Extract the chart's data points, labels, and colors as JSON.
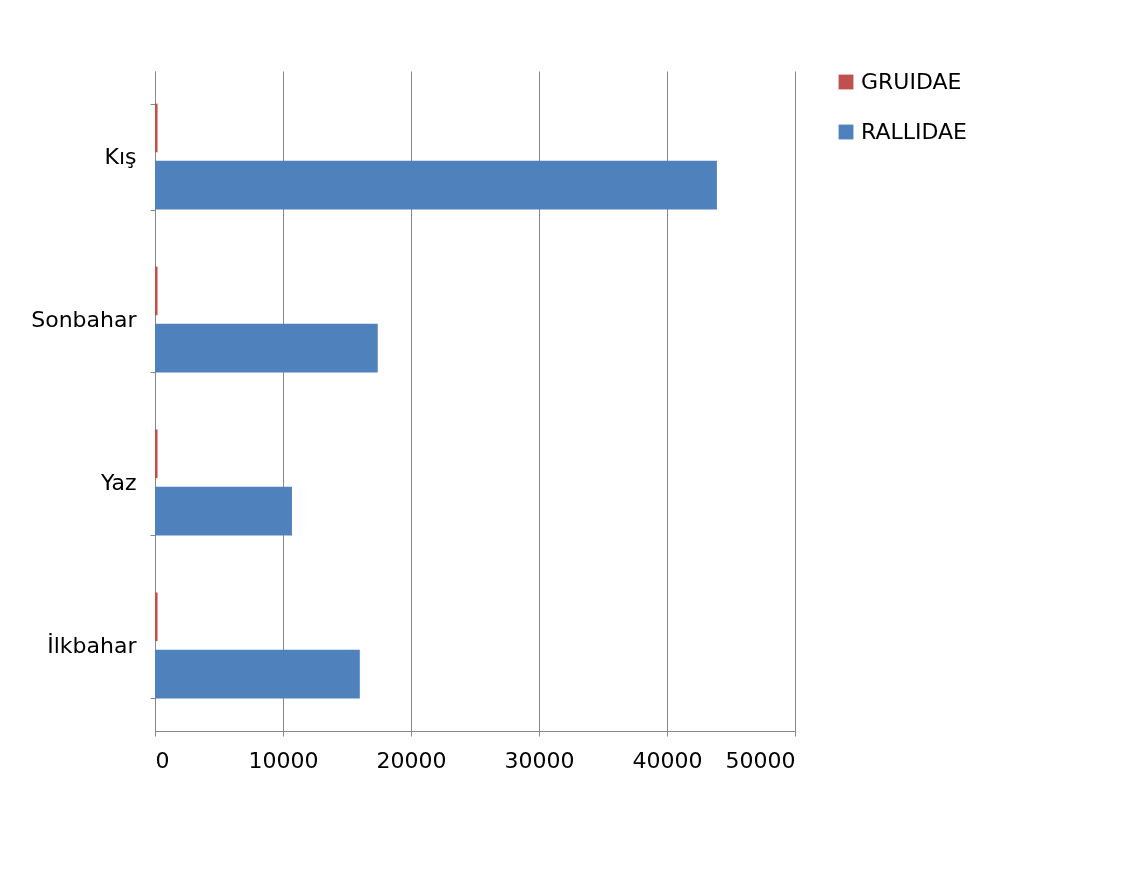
{
  "chart_data": {
    "type": "bar",
    "orientation": "horizontal",
    "categories": [
      "Kış",
      "Sonbahar",
      "Yaz",
      "İlkbahar"
    ],
    "series": [
      {
        "name": "GRUIDAE",
        "color": "#c0504d",
        "values": [
          200,
          200,
          200,
          200
        ]
      },
      {
        "name": "RALLIDAE",
        "color": "#4f81bd",
        "values": [
          43900,
          17400,
          10700,
          16000
        ]
      }
    ],
    "xlim": [
      0,
      50000
    ],
    "xticks": [
      0,
      10000,
      20000,
      30000,
      40000,
      50000
    ],
    "grid": "x",
    "legend": "right"
  }
}
